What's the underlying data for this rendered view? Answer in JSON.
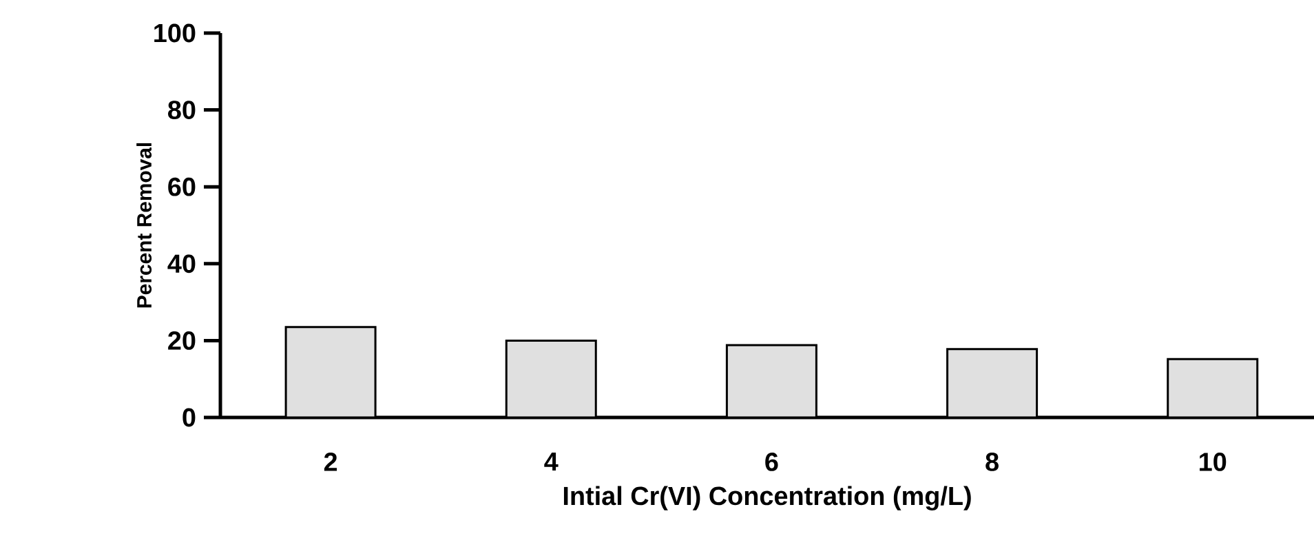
{
  "chart_data": {
    "type": "bar",
    "xlabel": "Intial Cr(VI) Concentration (mg/L)",
    "ylabel": "Percent Removal",
    "categories": [
      "2",
      "4",
      "6",
      "8",
      "10"
    ],
    "values": [
      23.5,
      20,
      18.8,
      17.8,
      15.2
    ],
    "color": "#e0e0e0",
    "ylim": [
      0,
      100
    ],
    "yticks": [
      0,
      20,
      40,
      60,
      80,
      100
    ],
    "grid": false
  }
}
